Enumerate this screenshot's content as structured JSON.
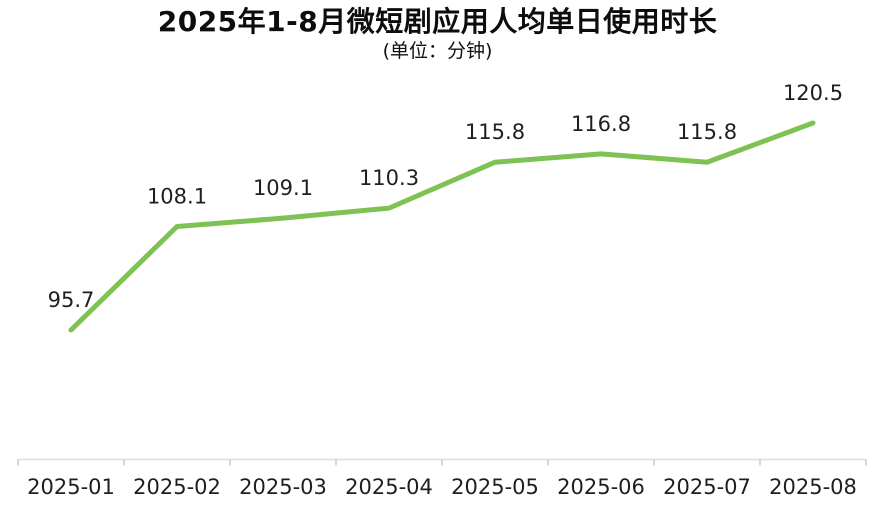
{
  "chart_data": {
    "type": "line",
    "title": "2025年1-8月微短剧应用人均单日使用时长",
    "subtitle": "(单位：分钟)",
    "unit": "分钟",
    "categories": [
      "2025-01",
      "2025-02",
      "2025-03",
      "2025-04",
      "2025-05",
      "2025-06",
      "2025-07",
      "2025-08"
    ],
    "series": [
      {
        "name": "人均单日使用时长",
        "values": [
          95.7,
          108.1,
          109.1,
          110.3,
          115.8,
          116.8,
          115.8,
          120.5
        ]
      }
    ],
    "xlabel": "",
    "ylabel": "",
    "ylim": [
      95.7,
      120.5
    ],
    "grid": false,
    "legend_position": "none",
    "data_labels_visible": true,
    "colors": {
      "line": "#7EC254",
      "value_label": "#1f1f1f",
      "axis_label": "#1f1f1f",
      "axis_line": "#dcdcdc",
      "tick": "#c8c8c8",
      "title": "#0d0d0d"
    }
  }
}
